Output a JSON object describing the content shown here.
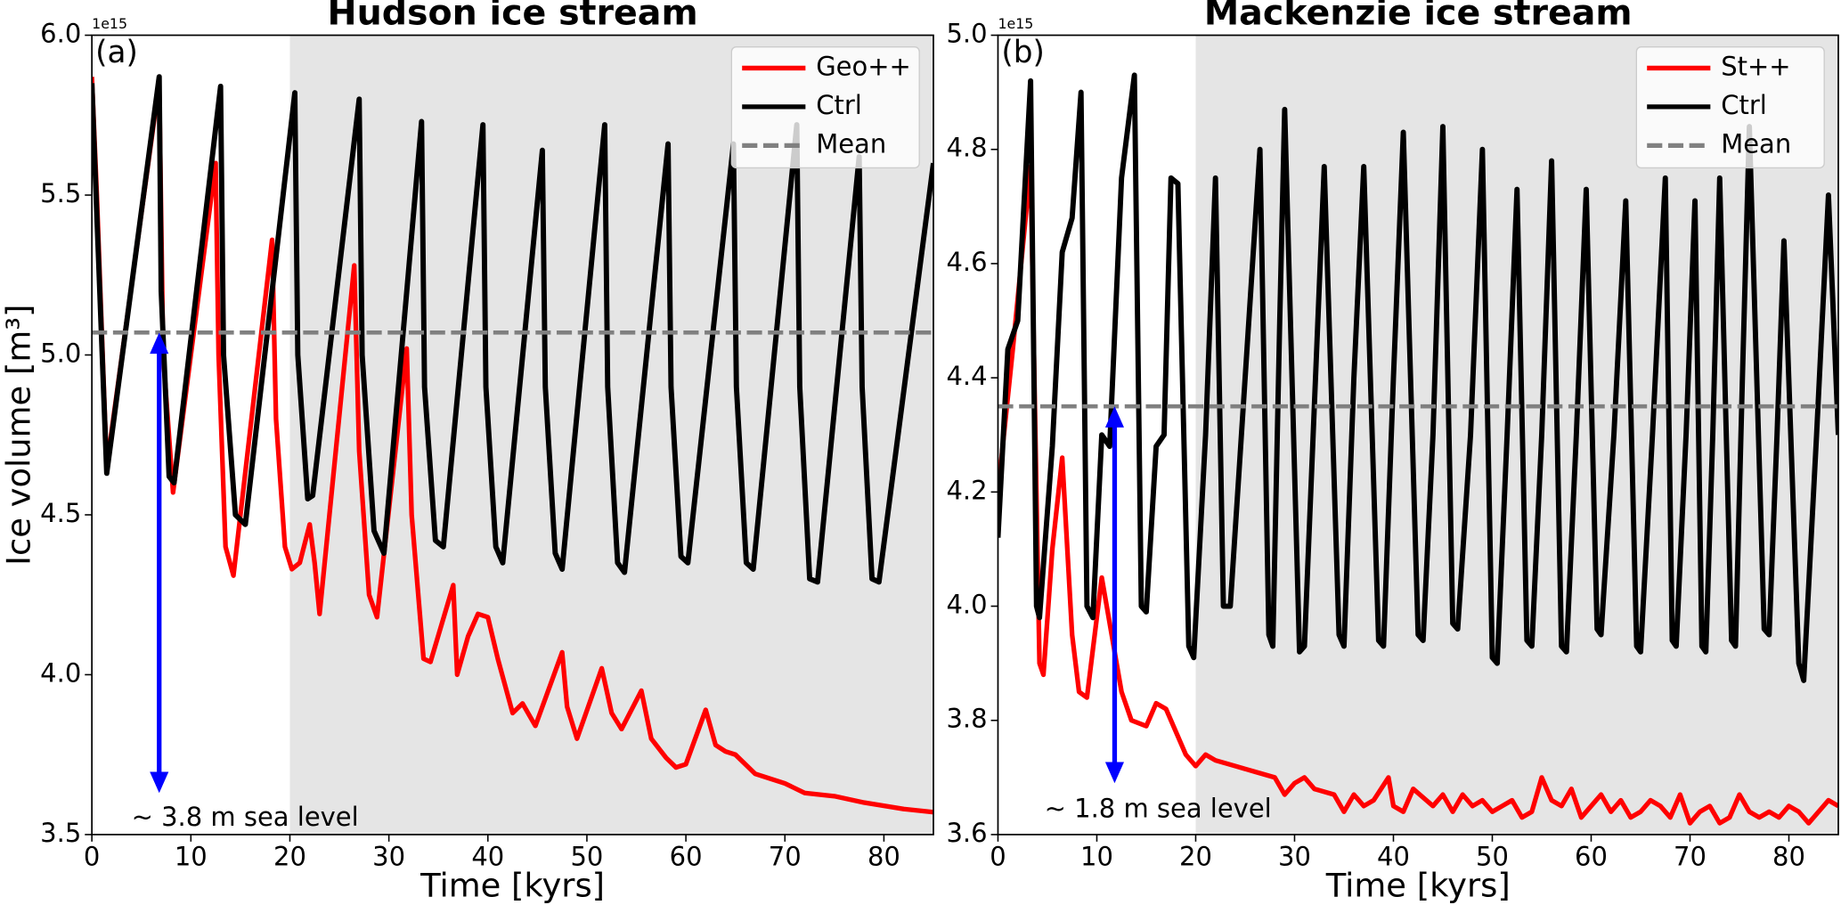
{
  "chart_data": [
    {
      "type": "line",
      "title": "Hudson ice stream",
      "panel_label": "(a)",
      "xlabel": "Time [kyrs]",
      "ylabel": "Ice volume [m³]",
      "y_offset_label": "1e15",
      "xlim": [
        0,
        85
      ],
      "ylim": [
        3.5,
        6.0
      ],
      "xticks": [
        0,
        10,
        20,
        30,
        40,
        50,
        60,
        70,
        80
      ],
      "yticks": [
        3.5,
        {
          "value": 4,
          "label": "4.0"
        },
        4.5,
        {
          "value": 5,
          "label": "5.0"
        },
        5.5,
        {
          "value": 6,
          "label": "6.0"
        }
      ],
      "shaded_xrange": [
        20,
        85
      ],
      "shade_color": "#e5e5e5",
      "legend": "upper right",
      "series": [
        {
          "name": "Geo++",
          "color": "#ff0000",
          "x": [
            0,
            0.5,
            1.5,
            6.8,
            7.2,
            8.2,
            12.5,
            12.8,
            13.5,
            14.3,
            18.2,
            18.6,
            19.5,
            20.2,
            21,
            22,
            22.5,
            23,
            26.5,
            27,
            28,
            28.8,
            31.8,
            32.3,
            33.5,
            34.2,
            36.5,
            36.9,
            38,
            39,
            40,
            41,
            42.5,
            43.5,
            44.8,
            47.5,
            48,
            49,
            51.5,
            52.5,
            53.5,
            55.5,
            56.5,
            58,
            59,
            60,
            62,
            63,
            64,
            65,
            67,
            70,
            72,
            75,
            78,
            80,
            82,
            85
          ],
          "values": [
            5.87,
            5.5,
            4.65,
            5.85,
            5.0,
            4.57,
            5.6,
            5.0,
            4.4,
            4.31,
            5.36,
            4.8,
            4.4,
            4.33,
            4.35,
            4.47,
            4.35,
            4.19,
            5.28,
            4.7,
            4.25,
            4.18,
            5.02,
            4.5,
            4.05,
            4.04,
            4.28,
            4.0,
            4.12,
            4.19,
            4.18,
            4.05,
            3.88,
            3.91,
            3.84,
            4.07,
            3.9,
            3.8,
            4.02,
            3.88,
            3.83,
            3.95,
            3.8,
            3.74,
            3.71,
            3.72,
            3.89,
            3.78,
            3.76,
            3.75,
            3.69,
            3.66,
            3.63,
            3.62,
            3.6,
            3.59,
            3.58,
            3.57
          ]
        },
        {
          "name": "Ctrl",
          "color": "#000000",
          "x": [
            0,
            0.3,
            1.5,
            6.8,
            7.0,
            7.8,
            8.3,
            13.0,
            13.3,
            14.5,
            15.5,
            20.5,
            20.8,
            21.8,
            22.3,
            27.0,
            27.3,
            28.5,
            29.5,
            33.3,
            33.6,
            34.7,
            35.5,
            39.5,
            39.8,
            40.8,
            41.5,
            45.5,
            45.8,
            46.8,
            47.5,
            51.8,
            52.1,
            53.1,
            53.8,
            58.2,
            58.5,
            59.5,
            60.2,
            64.8,
            65.1,
            66.1,
            66.8,
            71.2,
            71.5,
            72.5,
            73.3,
            77.5,
            77.8,
            78.8,
            79.5,
            85
          ],
          "values": [
            5.85,
            5.6,
            4.63,
            5.87,
            5.2,
            4.62,
            4.6,
            5.84,
            5.0,
            4.5,
            4.47,
            5.82,
            5.0,
            4.55,
            4.56,
            5.8,
            5.0,
            4.45,
            4.38,
            5.73,
            4.9,
            4.42,
            4.4,
            5.72,
            4.9,
            4.4,
            4.35,
            5.64,
            4.9,
            4.38,
            4.33,
            5.72,
            4.9,
            4.35,
            4.32,
            5.66,
            4.9,
            4.37,
            4.35,
            5.66,
            4.9,
            4.35,
            4.33,
            5.72,
            4.9,
            4.3,
            4.29,
            5.62,
            4.9,
            4.3,
            4.29,
            5.6
          ]
        },
        {
          "name": "Mean",
          "color": "#808080",
          "linestyle": "dashed",
          "hline": 5.07
        }
      ],
      "annotations": [
        {
          "text": "~ 3.8 m sea level",
          "color": "#0000ff",
          "text_x": 4.0,
          "text_y": 3.55,
          "arrow_x": 6.8,
          "arrow_top": 5.07,
          "arrow_bottom": 3.63
        }
      ]
    },
    {
      "type": "line",
      "title": "Mackenzie ice stream",
      "panel_label": "(b)",
      "xlabel": "Time [kyrs]",
      "y_offset_label": "1e15",
      "xlim": [
        0,
        85
      ],
      "ylim": [
        3.6,
        5.0
      ],
      "xticks": [
        0,
        10,
        20,
        30,
        40,
        50,
        60,
        70,
        80
      ],
      "yticks": [
        3.6,
        3.8,
        {
          "value": 4,
          "label": "4.0"
        },
        4.2,
        4.4,
        4.6,
        4.8,
        {
          "value": 5,
          "label": "5.0"
        }
      ],
      "shaded_xrange": [
        20,
        85
      ],
      "shade_color": "#e5e5e5",
      "legend": "upper right",
      "series": [
        {
          "name": "St++",
          "color": "#ff0000",
          "x": [
            0,
            1.5,
            3.3,
            4.2,
            4.6,
            5.5,
            6.5,
            7.5,
            8.2,
            9,
            10.5,
            11.5,
            12.5,
            13.5,
            15,
            16,
            17,
            18,
            19,
            20,
            21,
            22,
            24,
            26,
            28,
            29,
            30,
            31,
            32,
            34,
            35,
            36,
            37,
            38,
            39.5,
            40,
            41,
            42,
            44,
            45,
            46,
            47,
            48,
            49,
            50,
            51,
            52,
            53,
            54,
            55,
            56,
            57,
            58,
            59,
            60,
            61,
            62,
            63,
            64,
            65,
            66,
            67,
            68,
            69,
            70,
            71,
            72,
            73,
            74,
            75,
            76,
            77,
            78,
            79,
            80,
            81,
            82,
            83,
            84,
            85
          ],
          "values": [
            4.2,
            4.45,
            4.77,
            3.9,
            3.88,
            4.1,
            4.26,
            3.95,
            3.85,
            3.84,
            4.05,
            3.95,
            3.85,
            3.8,
            3.79,
            3.83,
            3.82,
            3.78,
            3.74,
            3.72,
            3.74,
            3.73,
            3.72,
            3.71,
            3.7,
            3.67,
            3.69,
            3.7,
            3.68,
            3.67,
            3.64,
            3.67,
            3.65,
            3.66,
            3.7,
            3.65,
            3.64,
            3.68,
            3.65,
            3.67,
            3.64,
            3.67,
            3.65,
            3.66,
            3.64,
            3.65,
            3.66,
            3.63,
            3.64,
            3.7,
            3.66,
            3.65,
            3.68,
            3.63,
            3.65,
            3.67,
            3.64,
            3.66,
            3.63,
            3.64,
            3.66,
            3.65,
            3.63,
            3.67,
            3.62,
            3.64,
            3.65,
            3.62,
            3.63,
            3.67,
            3.64,
            3.63,
            3.64,
            3.63,
            3.65,
            3.64,
            3.62,
            3.64,
            3.66,
            3.65
          ]
        },
        {
          "name": "Ctrl",
          "color": "#000000",
          "x": [
            0,
            1,
            2,
            3.3,
            3.9,
            4.2,
            5.5,
            6.5,
            7.5,
            8.4,
            9.0,
            9.6,
            10.5,
            11.3,
            12.5,
            13.8,
            14.5,
            15,
            16,
            16.8,
            17.5,
            18.2,
            19.3,
            19.8,
            21,
            22,
            22.8,
            23.5,
            25,
            26.5,
            27.4,
            27.8,
            28.5,
            29,
            30.5,
            31,
            32,
            33,
            34.5,
            35,
            36,
            37,
            38.5,
            39,
            40,
            41,
            42.5,
            43,
            44,
            45,
            46,
            46.5,
            47.8,
            49,
            50,
            50.5,
            51.5,
            52.5,
            53.5,
            54,
            55,
            56,
            57,
            57.5,
            58.5,
            59.5,
            60.6,
            61,
            62.3,
            63.5,
            64.6,
            65,
            66.2,
            67.5,
            68.2,
            68.6,
            69.6,
            70.5,
            71.2,
            71.6,
            72.3,
            73,
            74.2,
            74.6,
            75.3,
            76,
            77.5,
            78,
            78.8,
            79.5,
            81,
            81.5,
            82.8,
            84,
            85
          ],
          "values": [
            4.12,
            4.45,
            4.5,
            4.92,
            4.0,
            3.98,
            4.28,
            4.62,
            4.68,
            4.9,
            4.0,
            3.98,
            4.3,
            4.28,
            4.75,
            4.93,
            4.0,
            3.99,
            4.28,
            4.3,
            4.75,
            4.74,
            3.93,
            3.91,
            4.3,
            4.75,
            4.0,
            4.0,
            4.4,
            4.8,
            3.95,
            3.93,
            4.5,
            4.87,
            3.92,
            3.93,
            4.35,
            4.77,
            3.95,
            3.93,
            4.4,
            4.77,
            3.94,
            3.93,
            4.4,
            4.83,
            3.95,
            3.94,
            4.3,
            4.84,
            3.97,
            3.96,
            4.3,
            4.8,
            3.91,
            3.9,
            4.3,
            4.73,
            3.94,
            3.93,
            4.3,
            4.78,
            3.93,
            3.92,
            4.3,
            4.73,
            3.96,
            3.95,
            4.3,
            4.71,
            3.93,
            3.92,
            4.3,
            4.75,
            3.94,
            3.93,
            4.3,
            4.71,
            3.93,
            3.92,
            4.3,
            4.75,
            3.94,
            3.93,
            4.4,
            4.84,
            3.96,
            3.95,
            4.3,
            4.64,
            3.9,
            3.87,
            4.3,
            4.72,
            4.3
          ]
        },
        {
          "name": "Mean",
          "color": "#808080",
          "linestyle": "dashed",
          "hline": 4.35
        }
      ],
      "annotations": [
        {
          "text": "~ 1.8 m sea level",
          "color": "#0000ff",
          "text_x": 4.7,
          "text_y": 3.643,
          "arrow_x": 11.8,
          "arrow_top": 4.35,
          "arrow_bottom": 3.69
        }
      ]
    }
  ]
}
